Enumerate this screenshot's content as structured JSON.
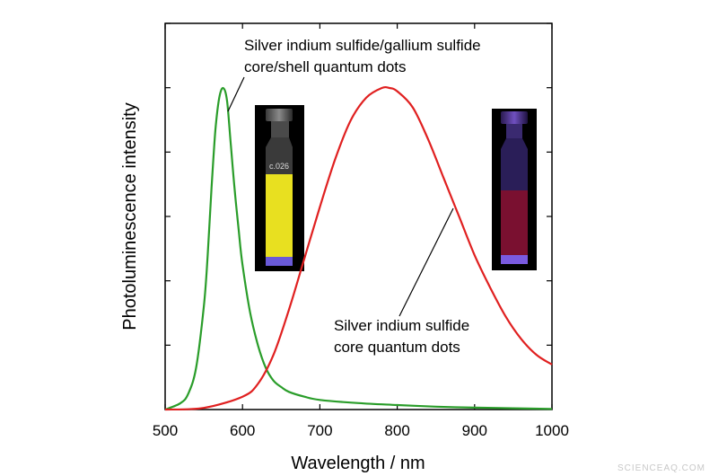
{
  "chart_data": {
    "type": "line",
    "xlabel": "Wavelength / nm",
    "ylabel": "Photoluminescence intensity",
    "xlim": [
      500,
      1000
    ],
    "ylim": [
      0,
      1.0
    ],
    "x_ticks": [
      500,
      600,
      700,
      800,
      900,
      1000
    ],
    "y_tick_labels_shown": false,
    "grid": false,
    "series": [
      {
        "color": "#2a9d2a",
        "x": [
          500,
          520,
          530,
          540,
          550,
          555,
          560,
          565,
          570,
          575,
          580,
          585,
          590,
          595,
          600,
          610,
          620,
          630,
          640,
          650,
          660,
          680,
          700,
          750,
          800,
          850,
          900,
          950,
          1000
        ],
        "y": [
          0.0,
          0.02,
          0.05,
          0.13,
          0.32,
          0.48,
          0.69,
          0.87,
          0.97,
          1.0,
          0.96,
          0.82,
          0.68,
          0.56,
          0.45,
          0.3,
          0.2,
          0.13,
          0.09,
          0.07,
          0.055,
          0.04,
          0.03,
          0.02,
          0.014,
          0.009,
          0.006,
          0.004,
          0.002
        ]
      },
      {
        "color": "#e02020",
        "x": [
          500,
          550,
          600,
          620,
          640,
          660,
          680,
          700,
          720,
          740,
          760,
          780,
          790,
          800,
          820,
          840,
          860,
          880,
          900,
          920,
          940,
          960,
          980,
          1000
        ],
        "y": [
          0.0,
          0.005,
          0.04,
          0.08,
          0.17,
          0.31,
          0.47,
          0.63,
          0.78,
          0.9,
          0.97,
          1.0,
          1.0,
          0.99,
          0.94,
          0.84,
          0.72,
          0.6,
          0.48,
          0.38,
          0.29,
          0.22,
          0.17,
          0.14
        ]
      }
    ],
    "annotations": [
      {
        "lines": [
          "Silver indium sulfide/gallium sulfide",
          "core/shell quantum dots"
        ],
        "points_to_series": 0
      },
      {
        "lines": [
          "Silver indium sulfide",
          "core quantum dots"
        ],
        "points_to_series": 1
      }
    ],
    "insets": [
      {
        "name": "yellow-emitting-vial",
        "liquid_color": "#e8e020",
        "label_on_vial": "c.026"
      },
      {
        "name": "red-emitting-vial",
        "liquid_color": "#7a1030"
      }
    ]
  },
  "watermark": "SCIENCEAQ.COM"
}
